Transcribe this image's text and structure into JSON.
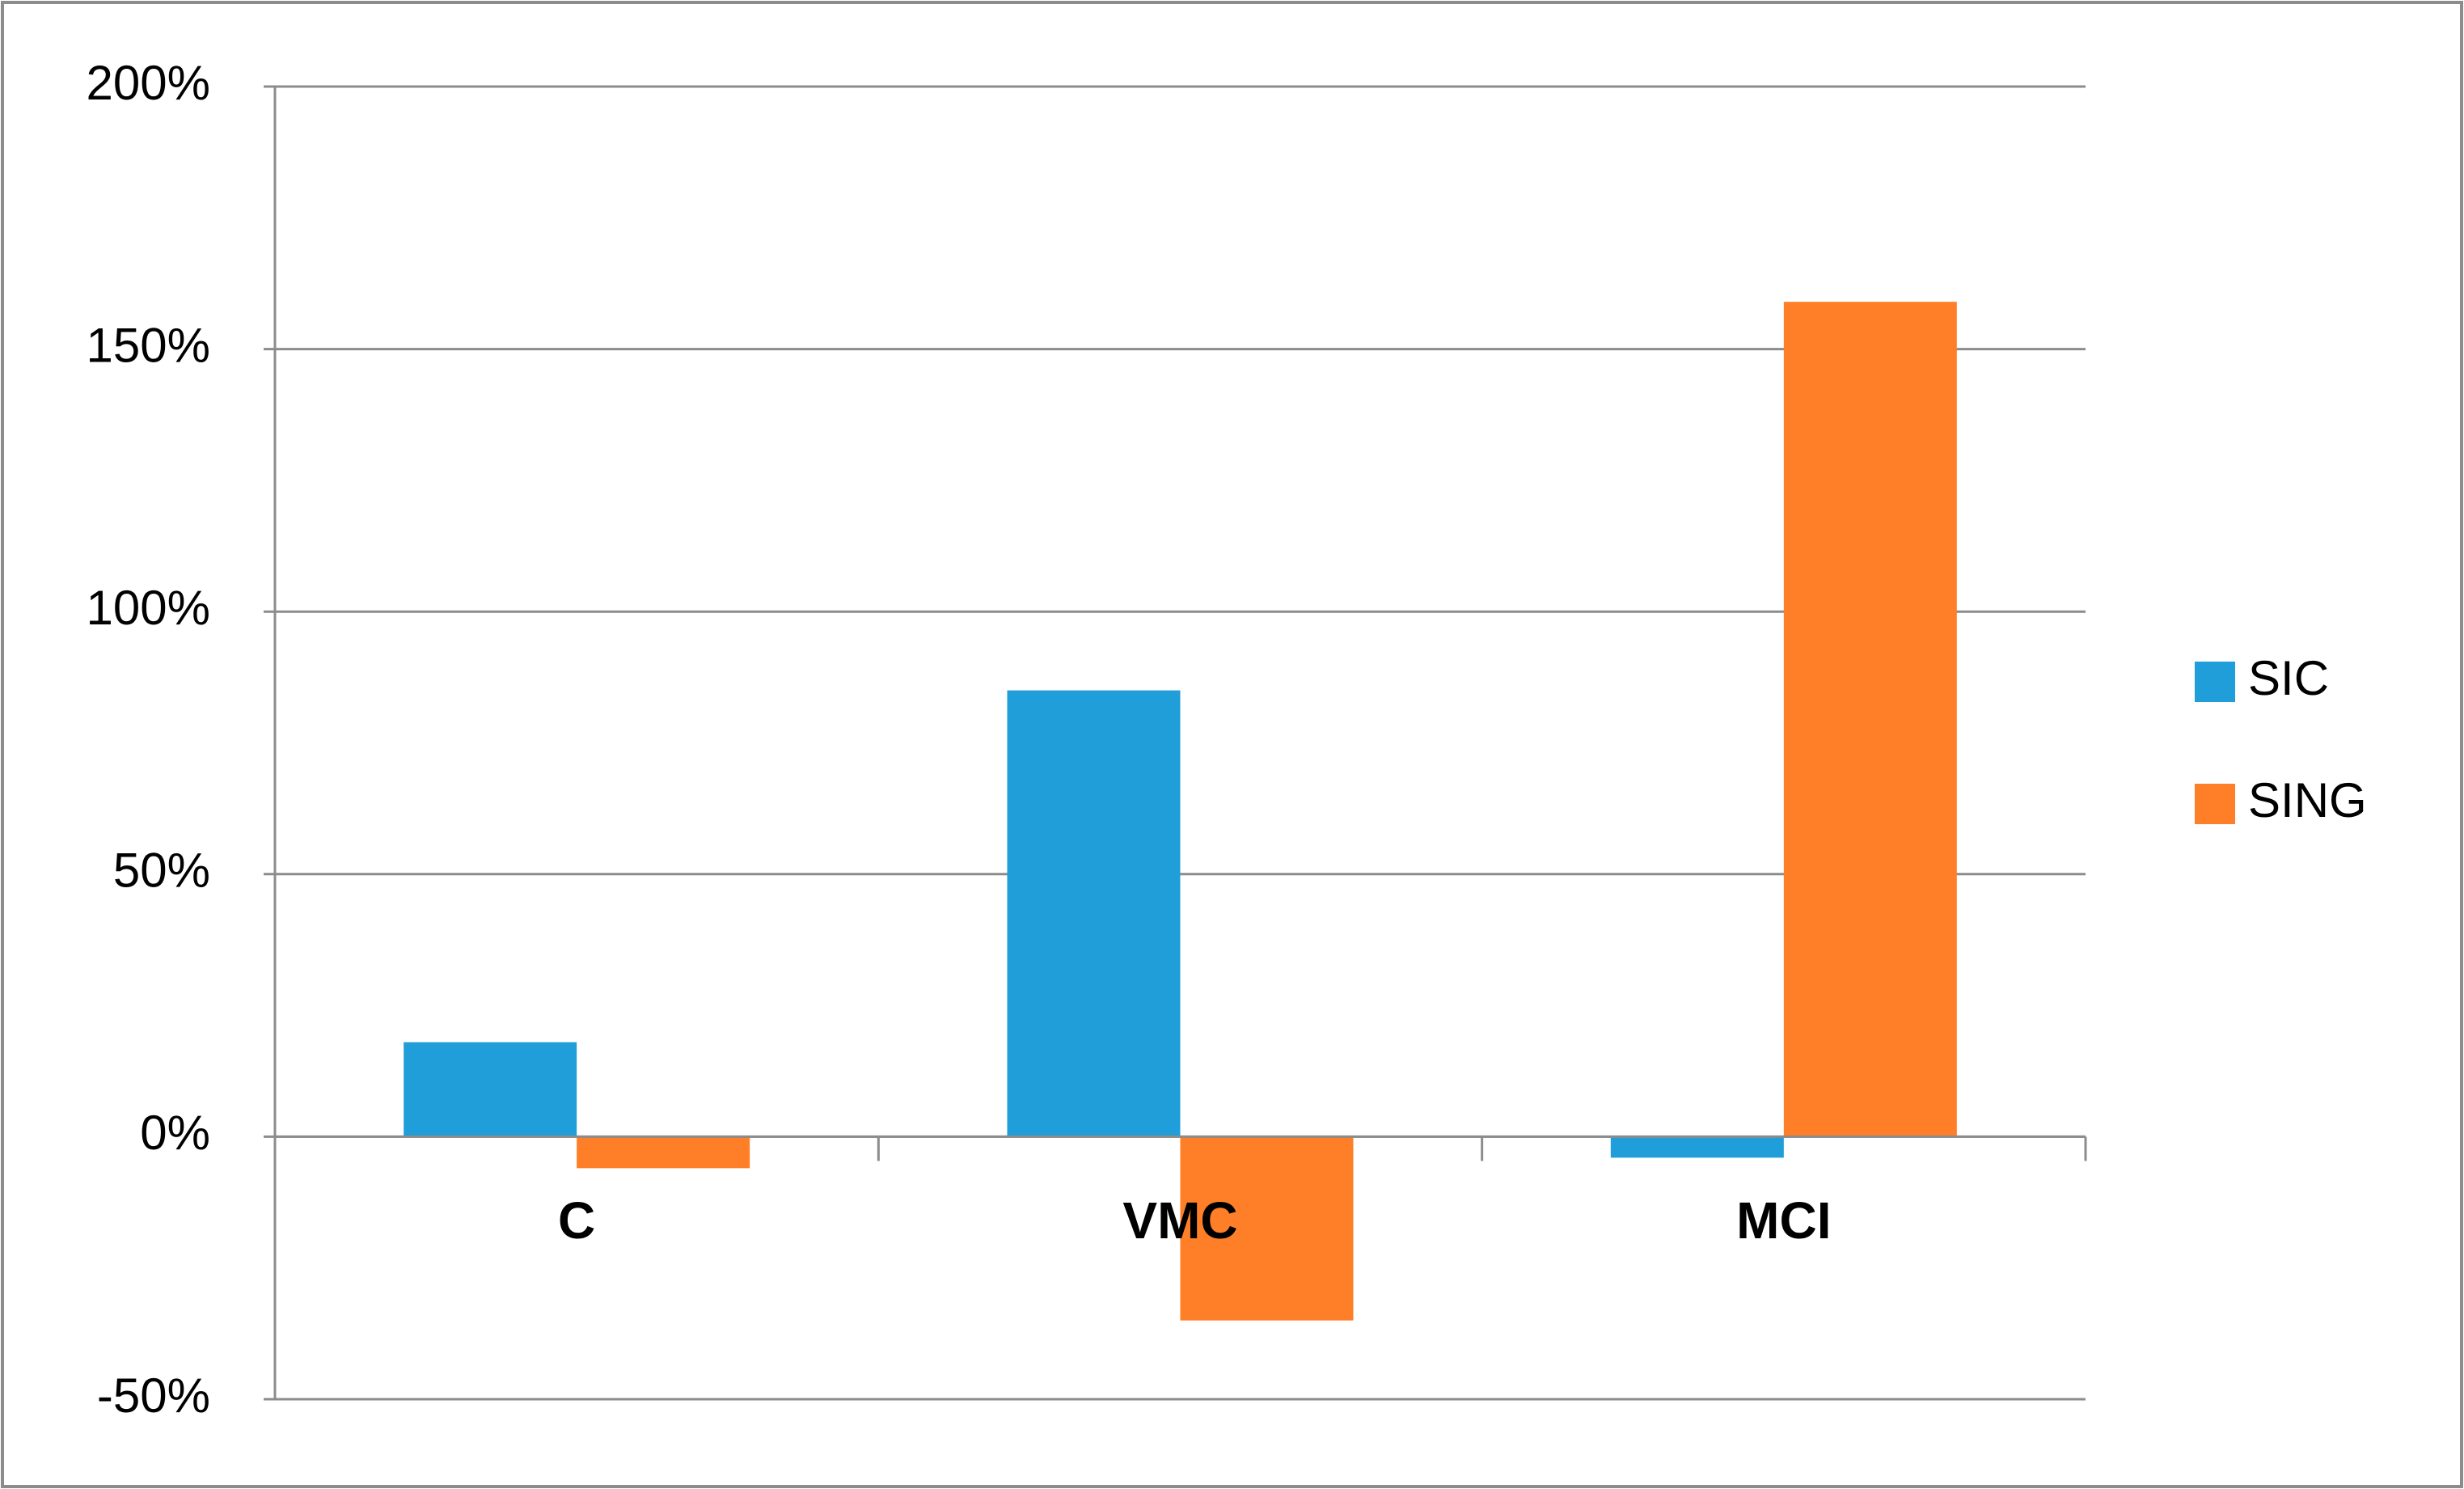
{
  "chart_data": {
    "type": "bar",
    "categories": [
      "C",
      "VMC",
      "MCI"
    ],
    "series": [
      {
        "name": "SIC",
        "color": "#1f9ed9",
        "values": [
          18,
          85,
          -4
        ]
      },
      {
        "name": "SING",
        "color": "#fe7f27",
        "values": [
          -6,
          -35,
          159
        ]
      }
    ],
    "ylim": [
      -50,
      200
    ],
    "yticks": [
      {
        "value": -50,
        "label": "-50%"
      },
      {
        "value": 0,
        "label": "0%"
      },
      {
        "value": 50,
        "label": "50%"
      },
      {
        "value": 100,
        "label": "100%"
      },
      {
        "value": 150,
        "label": "150%"
      },
      {
        "value": 200,
        "label": "200%"
      }
    ],
    "grid": true,
    "legend": "right"
  }
}
